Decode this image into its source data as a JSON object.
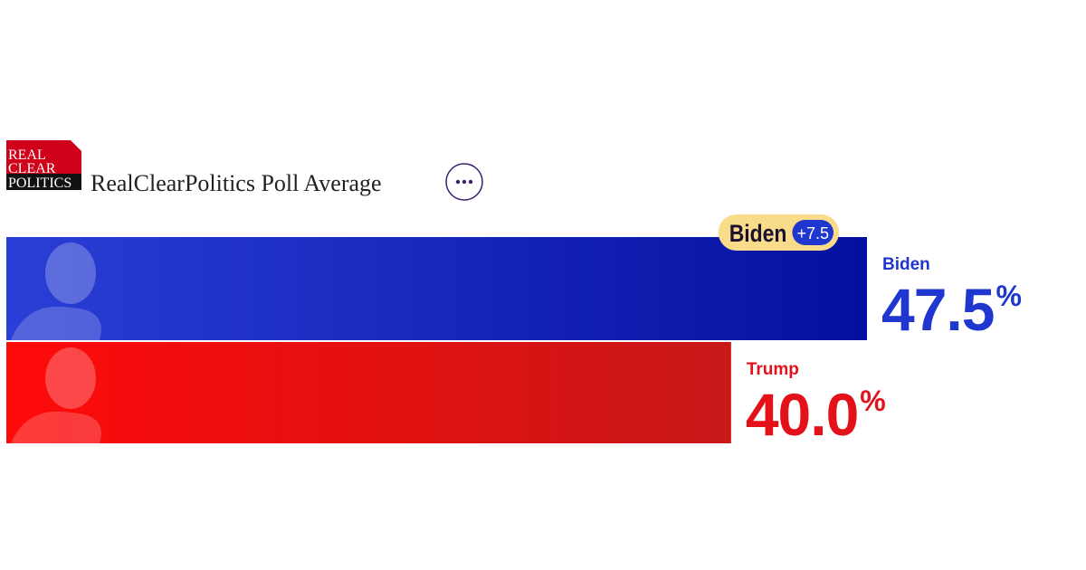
{
  "header": {
    "logo": [
      "REAL",
      "CLEAR",
      "POLITICS"
    ],
    "title": "RealClearPolitics Poll Average"
  },
  "chart_data": {
    "type": "bar",
    "orientation": "horizontal",
    "unit": "%",
    "categories": [
      "Biden",
      "Trump"
    ],
    "values": [
      47.5,
      40.0
    ],
    "value_labels": [
      "47.5",
      "40.0"
    ],
    "colors": [
      "#1f36cf",
      "#e3121a"
    ],
    "bar_gradients": [
      [
        "#2a3fd6",
        "#0410a0"
      ],
      [
        "#ff0a0a",
        "#c81818"
      ]
    ],
    "lead": {
      "name": "Biden",
      "label": "+7.5"
    }
  }
}
